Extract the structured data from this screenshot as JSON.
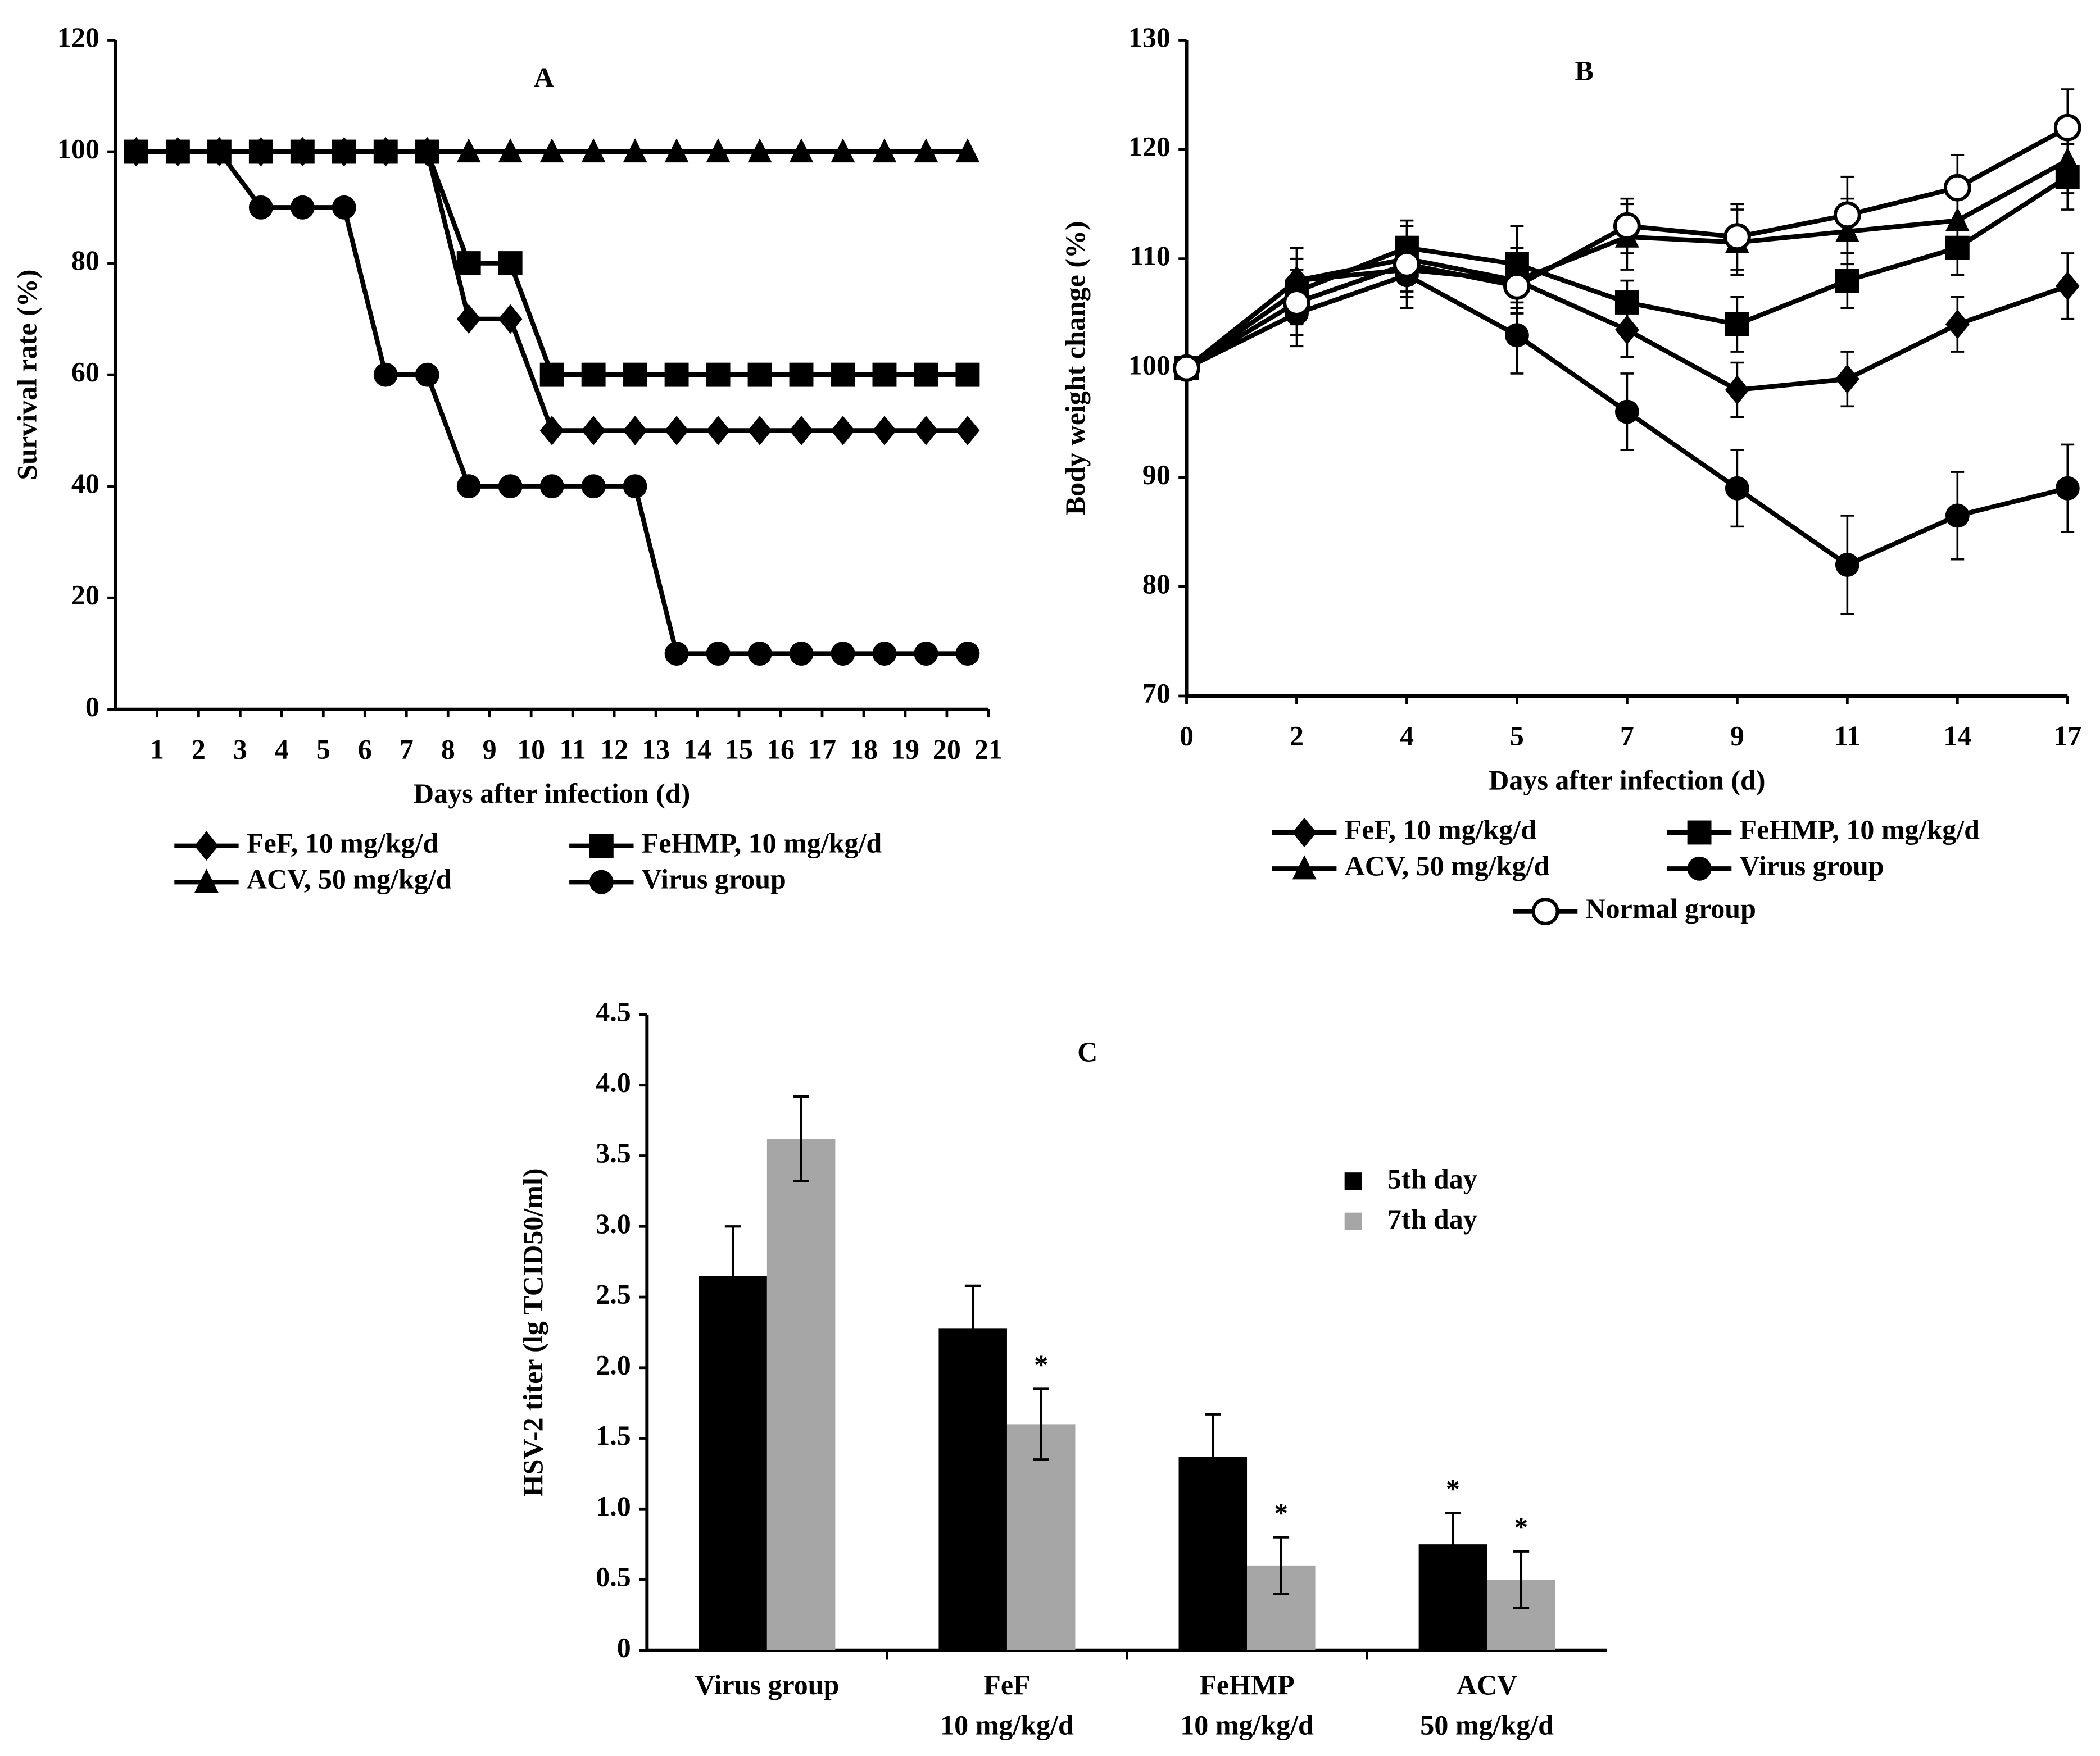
{
  "chart_data": [
    {
      "type": "line",
      "title": "A",
      "ylabel": "Survival rate (%)",
      "xlabel": "Days after infection (d)",
      "x": [
        0.5,
        1.5,
        2.5,
        3.5,
        4.5,
        5.5,
        6.5,
        7.5,
        8.5,
        9.5,
        10.5,
        11.5,
        12.5,
        13.5,
        14.5,
        15.5,
        16.5,
        17.5,
        18.5,
        19.5,
        20.5
      ],
      "xlim": [
        0,
        21
      ],
      "xticks": [
        1,
        2,
        3,
        4,
        5,
        6,
        7,
        8,
        9,
        10,
        11,
        12,
        13,
        14,
        15,
        16,
        17,
        18,
        19,
        20,
        21
      ],
      "ylim": [
        0,
        120
      ],
      "yticks": [
        0,
        20,
        40,
        60,
        80,
        100,
        120
      ],
      "series": [
        {
          "name": "FeF, 10 mg/kg/d",
          "color": "#000000",
          "marker": "diamond",
          "values": [
            100,
            100,
            100,
            100,
            100,
            100,
            100,
            100,
            70,
            70,
            50,
            50,
            50,
            50,
            50,
            50,
            50,
            50,
            50,
            50,
            50
          ]
        },
        {
          "name": "FeHMP, 10 mg/kg/d",
          "color": "#000000",
          "marker": "square",
          "values": [
            100,
            100,
            100,
            100,
            100,
            100,
            100,
            100,
            80,
            80,
            60,
            60,
            60,
            60,
            60,
            60,
            60,
            60,
            60,
            60,
            60
          ]
        },
        {
          "name": "ACV, 50 mg/kg/d",
          "color": "#000000",
          "marker": "triangle",
          "values": [
            100,
            100,
            100,
            100,
            100,
            100,
            100,
            100,
            100,
            100,
            100,
            100,
            100,
            100,
            100,
            100,
            100,
            100,
            100,
            100,
            100
          ]
        },
        {
          "name": "Virus group",
          "color": "#000000",
          "marker": "circle",
          "values": [
            100,
            100,
            100,
            90,
            90,
            90,
            60,
            60,
            40,
            40,
            40,
            40,
            40,
            10,
            10,
            10,
            10,
            10,
            10,
            10,
            10
          ]
        }
      ]
    },
    {
      "type": "line",
      "title": "B",
      "ylabel": "Body weight change (%)",
      "xlabel": "Days after infection (d)",
      "categories": [
        "0",
        "2",
        "4",
        "5",
        "7",
        "9",
        "11",
        "14",
        "17"
      ],
      "ylim": [
        70,
        130
      ],
      "yticks": [
        70,
        80,
        90,
        100,
        110,
        120,
        130
      ],
      "series": [
        {
          "name": "FeF, 10 mg/kg/d",
          "color": "#000000",
          "marker": "diamond",
          "values": [
            100,
            108,
            110,
            108,
            103.5,
            98,
            99,
            104,
            107.5
          ],
          "errors": [
            0,
            3,
            3,
            3,
            2.5,
            2.5,
            2.5,
            2.5,
            3
          ]
        },
        {
          "name": "FeHMP, 10 mg/kg/d",
          "color": "#000000",
          "marker": "square",
          "values": [
            100,
            107,
            111,
            109.5,
            106,
            104,
            108,
            111,
            117.5
          ],
          "errors": [
            0,
            3,
            2.5,
            3.5,
            2,
            2.5,
            2.5,
            2.5,
            3
          ]
        },
        {
          "name": "ACV, 50 mg/kg/d",
          "color": "#000000",
          "marker": "triangle",
          "values": [
            100,
            108,
            109,
            108,
            112,
            111.5,
            112.5,
            113.5,
            119
          ],
          "errors": [
            0,
            3,
            2.5,
            2.5,
            3,
            3,
            3,
            3,
            3
          ]
        },
        {
          "name": "Virus group",
          "color": "#000000",
          "marker": "circle",
          "values": [
            100,
            105,
            108.5,
            103,
            96,
            89,
            82,
            86.5,
            89
          ],
          "errors": [
            0,
            3,
            3,
            3.5,
            3.5,
            3.5,
            4.5,
            4,
            4
          ]
        },
        {
          "name": "Normal group",
          "color": "#000000",
          "marker": "open-circle",
          "values": [
            100,
            106,
            109.5,
            107.5,
            113,
            112,
            114,
            116.5,
            122
          ],
          "errors": [
            0,
            3,
            2.5,
            2.5,
            2.5,
            3,
            3.5,
            3,
            3.5
          ]
        }
      ]
    },
    {
      "type": "bar",
      "title": "C",
      "ylabel": "HSV-2 titer (lg TCID50/ml)",
      "categories": [
        [
          "Virus group"
        ],
        [
          "FeF",
          "10 mg/kg/d"
        ],
        [
          "FeHMP",
          "10 mg/kg/d"
        ],
        [
          "ACV",
          "50 mg/kg/d"
        ]
      ],
      "ylim": [
        0,
        4.5
      ],
      "yticks": [
        0,
        0.5,
        {
          "value": 1,
          "label": "1.0"
        },
        1.5,
        {
          "value": 2,
          "label": "2.0"
        },
        2.5,
        {
          "value": 3,
          "label": "3.0"
        },
        3.5,
        {
          "value": 4,
          "label": "4.0"
        },
        4.5
      ],
      "series": [
        {
          "name": "5th day",
          "color": "#000000",
          "values": [
            2.65,
            2.28,
            1.37,
            0.75
          ],
          "errors": [
            0.35,
            0.3,
            0.3,
            0.22
          ]
        },
        {
          "name": "7th day",
          "color": "#a6a6a6",
          "values": [
            3.62,
            1.6,
            0.6,
            0.5
          ],
          "errors": [
            0.3,
            0.25,
            0.2,
            0.2
          ]
        }
      ],
      "annotations": [
        {
          "text": "*",
          "series": 1,
          "index": 1
        },
        {
          "text": "*",
          "series": 1,
          "index": 2
        },
        {
          "text": "*",
          "series": 0,
          "index": 3
        },
        {
          "text": "*",
          "series": 1,
          "index": 3
        }
      ]
    }
  ]
}
